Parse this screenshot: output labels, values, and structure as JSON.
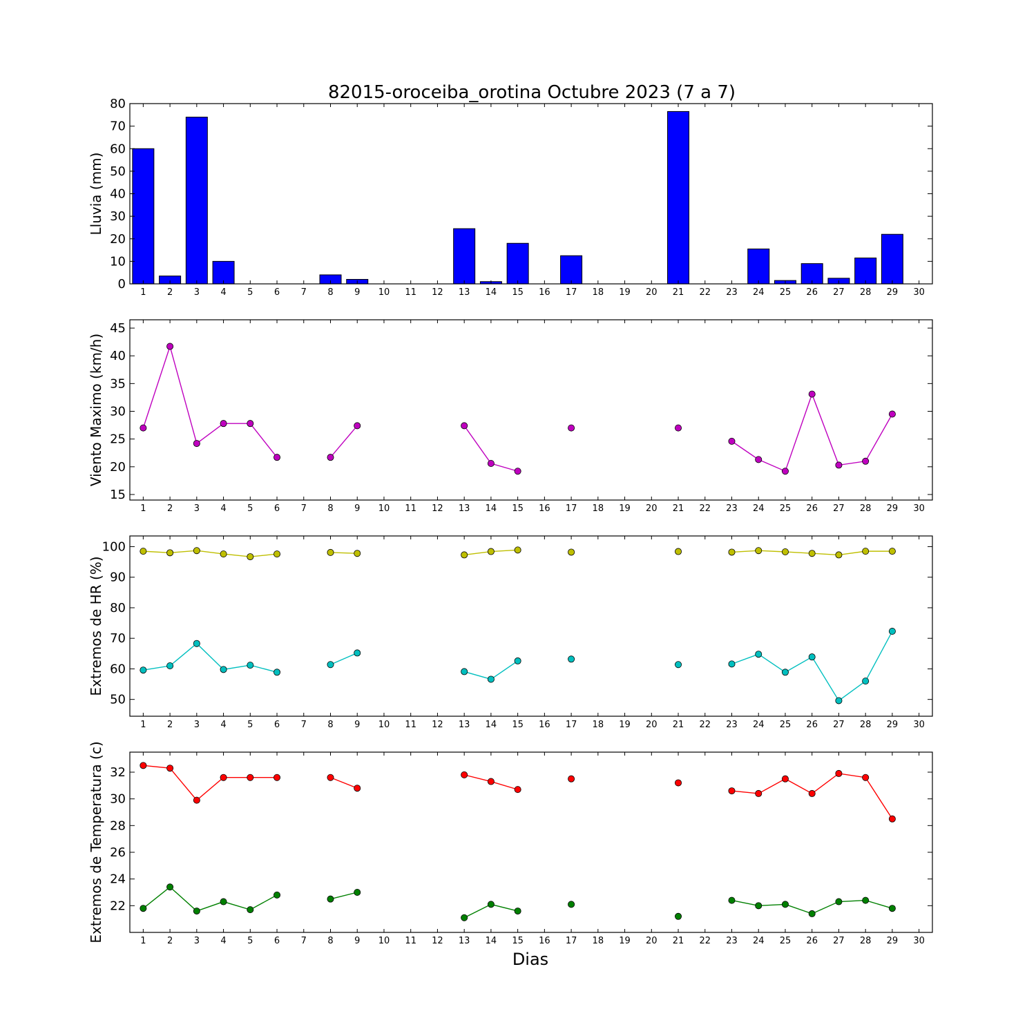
{
  "title": "82015-oroceiba_orotina Octubre 2023  (7 a 7)",
  "xlabel": "Dias",
  "colors": {
    "rain": "#0000ff",
    "wind": "#bf00bf",
    "hr_max": "#bfbf00",
    "hr_min": "#00bfbf",
    "temp_max": "#ff0000",
    "temp_min": "#008000"
  },
  "chart_data": [
    {
      "id": "rain",
      "type": "bar",
      "ylabel": "Lluvia (mm)",
      "x": [
        1,
        2,
        3,
        4,
        5,
        6,
        7,
        8,
        9,
        10,
        11,
        12,
        13,
        14,
        15,
        16,
        17,
        18,
        19,
        20,
        21,
        22,
        23,
        24,
        25,
        26,
        27,
        28,
        29,
        30
      ],
      "xlim": [
        0.5,
        30.5
      ],
      "ylim": [
        0,
        80
      ],
      "yticks": [
        0,
        10,
        20,
        30,
        40,
        50,
        60,
        70,
        80
      ],
      "series": [
        {
          "values": [
            60,
            3.5,
            74,
            10,
            0,
            0,
            0,
            4,
            2,
            0,
            0,
            0,
            24.5,
            1,
            18,
            0,
            12.5,
            0,
            0,
            0,
            76.5,
            0,
            0,
            15.5,
            1.5,
            9,
            2.5,
            11.5,
            22,
            0
          ],
          "color": "#0000ff"
        }
      ]
    },
    {
      "id": "wind",
      "type": "line",
      "ylabel": "Viento Maximo (km/h)",
      "x": [
        1,
        2,
        3,
        4,
        5,
        6,
        7,
        8,
        9,
        10,
        11,
        12,
        13,
        14,
        15,
        16,
        17,
        18,
        19,
        20,
        21,
        22,
        23,
        24,
        25,
        26,
        27,
        28,
        29,
        30
      ],
      "xlim": [
        0.5,
        30.5
      ],
      "ylim": [
        14,
        46.5
      ],
      "yticks": [
        15,
        20,
        25,
        30,
        35,
        40,
        45
      ],
      "series": [
        {
          "values": [
            27,
            41.7,
            24.2,
            27.8,
            27.8,
            21.7,
            null,
            21.7,
            27.4,
            null,
            null,
            null,
            27.4,
            20.6,
            19.2,
            null,
            27,
            null,
            null,
            null,
            27,
            null,
            24.6,
            21.3,
            19.2,
            33.1,
            20.3,
            21,
            29.5,
            null
          ],
          "color": "#bf00bf"
        }
      ]
    },
    {
      "id": "humidity",
      "type": "line",
      "ylabel": "Extremos de HR (%)",
      "x": [
        1,
        2,
        3,
        4,
        5,
        6,
        7,
        8,
        9,
        10,
        11,
        12,
        13,
        14,
        15,
        16,
        17,
        18,
        19,
        20,
        21,
        22,
        23,
        24,
        25,
        26,
        27,
        28,
        29,
        30
      ],
      "xlim": [
        0.5,
        30.5
      ],
      "ylim": [
        44.5,
        103.5
      ],
      "yticks": [
        50,
        60,
        70,
        80,
        90,
        100
      ],
      "series": [
        {
          "values": [
            98.5,
            98,
            98.7,
            97.6,
            96.7,
            97.6,
            null,
            98.1,
            97.8,
            null,
            null,
            null,
            97.3,
            98.4,
            98.9,
            null,
            98.2,
            null,
            null,
            null,
            98.4,
            null,
            98.2,
            98.7,
            98.3,
            97.8,
            97.3,
            98.5,
            98.5,
            null
          ],
          "color": "#bfbf00"
        },
        {
          "values": [
            59.6,
            61,
            68.3,
            59.8,
            61.2,
            58.9,
            null,
            61.4,
            65.2,
            null,
            null,
            null,
            59.1,
            56.6,
            62.6,
            null,
            63.2,
            null,
            null,
            null,
            61.4,
            null,
            61.6,
            64.8,
            58.9,
            63.9,
            49.6,
            56,
            72.3,
            null
          ],
          "color": "#00bfbf"
        }
      ]
    },
    {
      "id": "temperature",
      "type": "line",
      "ylabel": "Extremos de Temperatura (c)",
      "xlabel": "Dias",
      "x": [
        1,
        2,
        3,
        4,
        5,
        6,
        7,
        8,
        9,
        10,
        11,
        12,
        13,
        14,
        15,
        16,
        17,
        18,
        19,
        20,
        21,
        22,
        23,
        24,
        25,
        26,
        27,
        28,
        29,
        30
      ],
      "xlim": [
        0.5,
        30.5
      ],
      "ylim": [
        20,
        33.5
      ],
      "yticks": [
        22,
        24,
        26,
        28,
        30,
        32
      ],
      "series": [
        {
          "values": [
            32.5,
            32.3,
            29.9,
            31.6,
            31.6,
            31.6,
            null,
            31.6,
            30.8,
            null,
            null,
            null,
            31.8,
            31.3,
            30.7,
            null,
            31.5,
            null,
            null,
            null,
            31.2,
            null,
            30.6,
            30.4,
            31.5,
            30.4,
            31.9,
            31.6,
            28.5,
            null
          ],
          "color": "#ff0000"
        },
        {
          "values": [
            21.8,
            23.4,
            21.6,
            22.3,
            21.7,
            22.8,
            null,
            22.5,
            23,
            null,
            null,
            null,
            21.1,
            22.1,
            21.6,
            null,
            22.1,
            null,
            null,
            null,
            21.2,
            null,
            22.4,
            22,
            22.1,
            21.4,
            22.3,
            22.4,
            21.8,
            null
          ],
          "color": "#008000"
        }
      ]
    }
  ]
}
